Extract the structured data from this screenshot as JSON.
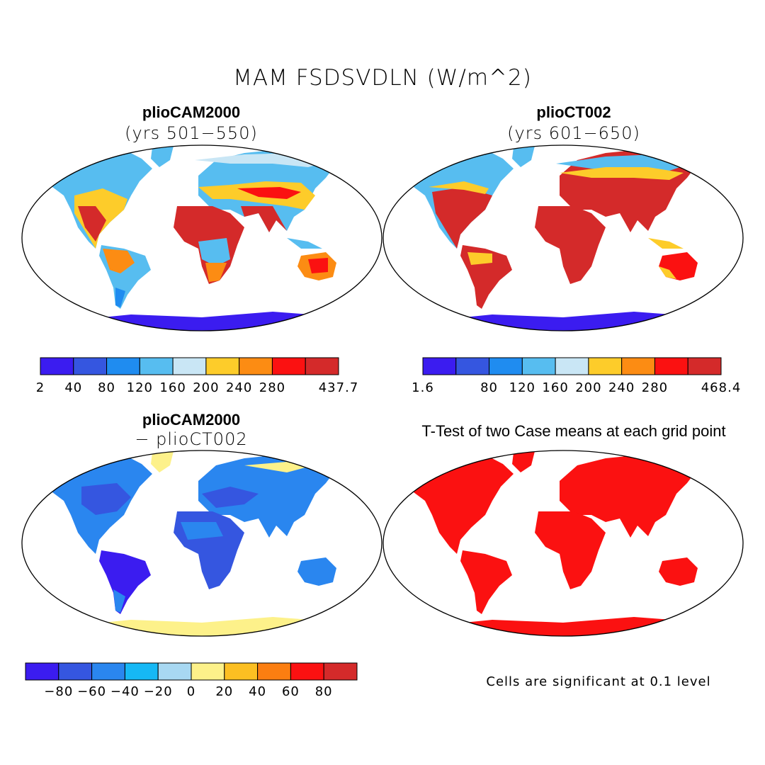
{
  "figure": {
    "title": "MAM FSDSVDLN (W/m^2)"
  },
  "panels": {
    "top_left": {
      "title": "plioCAM2000",
      "subtitle": "(yrs 501−550)"
    },
    "top_right": {
      "title": "plioCT002",
      "subtitle": "(yrs 601−650)"
    },
    "bottom_left": {
      "title": "plioCAM2000",
      "subtitle": "− plioCT002"
    },
    "bottom_right": {
      "title": "T-Test of two Case means at each grid point",
      "note": "Cells are significant at 0.1 level"
    }
  },
  "colorbars": {
    "cb1": {
      "colors": [
        "#3b1cf0",
        "#3556e0",
        "#1f8cf0",
        "#57bdf0",
        "#c9e6f5",
        "#fdcc2a",
        "#fc8c13",
        "#fb1111",
        "#d42a2a"
      ],
      "labels": [
        "2",
        "40",
        "80",
        "120",
        "160",
        "200",
        "240",
        "280",
        "437.7"
      ],
      "label_slots": [
        0,
        1,
        2,
        3,
        4,
        5,
        6,
        7,
        9
      ]
    },
    "cb2": {
      "colors": [
        "#3b1cf0",
        "#3556e0",
        "#1f8cf0",
        "#57bdf0",
        "#c9e6f5",
        "#fdcc2a",
        "#fc8c13",
        "#fb1111",
        "#d42a2a"
      ],
      "labels": [
        "1.6",
        "80",
        "120",
        "160",
        "200",
        "240",
        "280",
        "468.4"
      ],
      "label_slots": [
        0,
        2,
        3,
        4,
        5,
        6,
        7,
        9
      ]
    },
    "cb3": {
      "colors": [
        "#3b1cf0",
        "#3556e0",
        "#2a86ef",
        "#16b8f5",
        "#a8d8f2",
        "#fdf18a",
        "#fcbf22",
        "#fb7e11",
        "#fb1111",
        "#d42a2a"
      ],
      "labels": [
        "−80",
        "−60",
        "−40",
        "−20",
        "0",
        "20",
        "40",
        "60",
        "80"
      ],
      "label_slots": [
        1,
        2,
        3,
        4,
        5,
        6,
        7,
        8,
        9
      ]
    }
  },
  "map_colors": {
    "cold": "#3b1cf0",
    "cool": "#1f8cf0",
    "light": "#57bdf0",
    "pale": "#c9e6f5",
    "warm": "#fdcc2a",
    "hot": "#fb1111",
    "hottest": "#d42a2a",
    "diff_neg_strong": "#3556e0",
    "diff_neg": "#2a86ef",
    "diff_neg_light": "#16b8f5",
    "diff_pos": "#fdf18a",
    "sig": "#fb1111"
  }
}
